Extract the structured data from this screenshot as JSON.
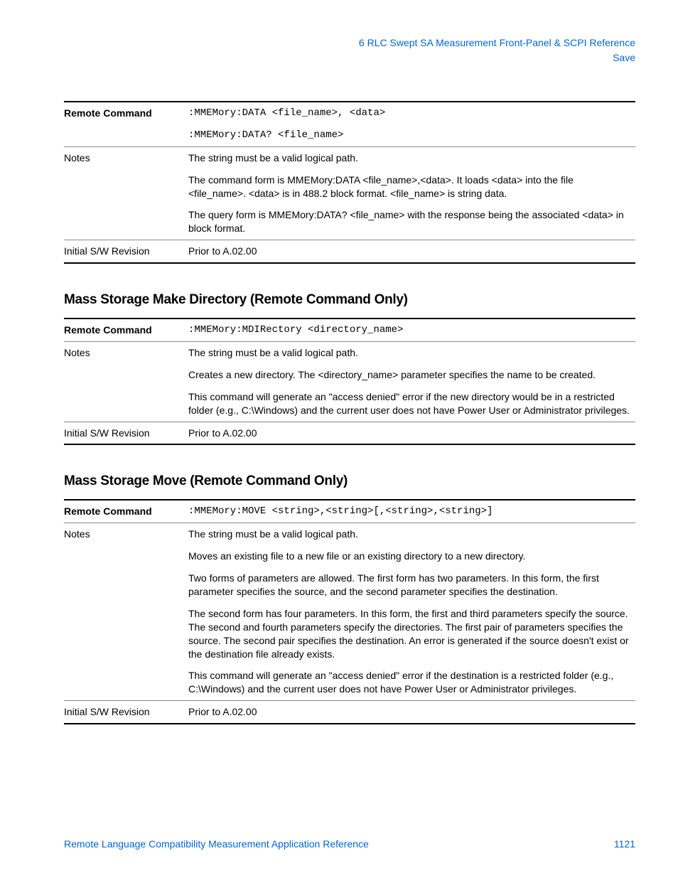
{
  "header": {
    "chapter": "6  RLC Swept SA Measurement Front-Panel & SCPI Reference",
    "section": "Save"
  },
  "table1": {
    "rows": [
      {
        "label": "Remote Command",
        "bold": true,
        "mono": true,
        "value": ":MMEMory:DATA <file_name>, <data>"
      },
      {
        "label": "",
        "bold": false,
        "mono": true,
        "value": ":MMEMory:DATA? <file_name>"
      },
      {
        "label": "Notes",
        "bold": false,
        "sep": true,
        "value": "The string must be a valid logical path."
      },
      {
        "label": "",
        "value": "The command form is MMEMory:DATA <file_name>,<data>. It loads <data> into the file <file_name>. <data> is in 488.2 block format. <file_name> is string data."
      },
      {
        "label": "",
        "value": "The query form is MMEMory:DATA? <file_name> with the response being the associated <data> in block format."
      },
      {
        "label": "Initial S/W Revision",
        "sep": true,
        "value": "Prior to A.02.00"
      }
    ]
  },
  "heading2": "Mass Storage Make Directory  (Remote Command Only)",
  "table2": {
    "rows": [
      {
        "label": "Remote Command",
        "bold": true,
        "mono": true,
        "value": ":MMEMory:MDIRectory <directory_name>"
      },
      {
        "label": "Notes",
        "sep": true,
        "value": "The string must be a valid logical path."
      },
      {
        "label": "",
        "value": "Creates a new directory. The <directory_name> parameter specifies the name to be created."
      },
      {
        "label": "",
        "value": "This command will generate an \"access denied\" error if the new directory would be in a restricted folder (e.g., C:\\Windows) and the current user does not have Power User or Administrator privileges."
      },
      {
        "label": "Initial S/W Revision",
        "sep": true,
        "value": "Prior to A.02.00"
      }
    ]
  },
  "heading3": "Mass Storage Move (Remote Command Only)",
  "table3": {
    "rows": [
      {
        "label": "Remote Command",
        "bold": true,
        "mono": true,
        "value": ":MMEMory:MOVE <string>,<string>[,<string>,<string>]"
      },
      {
        "label": "Notes",
        "sep": true,
        "value": "The string must be a valid logical path."
      },
      {
        "label": "",
        "value": "Moves an existing file to a new file or an existing directory to a new directory."
      },
      {
        "label": "",
        "value": "Two forms of parameters are allowed. The first form has two parameters. In this form, the first parameter specifies the source, and the second parameter specifies the destination."
      },
      {
        "label": "",
        "value": "The second form has four parameters. In this form, the first and third parameters specify the source. The second and fourth parameters specify the directories. The first pair of parameters specifies the source. The second pair specifies the destination. An error is generated if the source doesn't exist or the destination file already exists."
      },
      {
        "label": "",
        "value": "This command will generate an \"access denied\" error if the destination is a restricted folder (e.g., C:\\Windows) and the current user does not have Power User or Administrator privileges."
      },
      {
        "label": "Initial S/W Revision",
        "sep": true,
        "value": "Prior to A.02.00"
      }
    ]
  },
  "footer": {
    "title": "Remote Language Compatibility Measurement Application Reference",
    "page": "1121"
  }
}
